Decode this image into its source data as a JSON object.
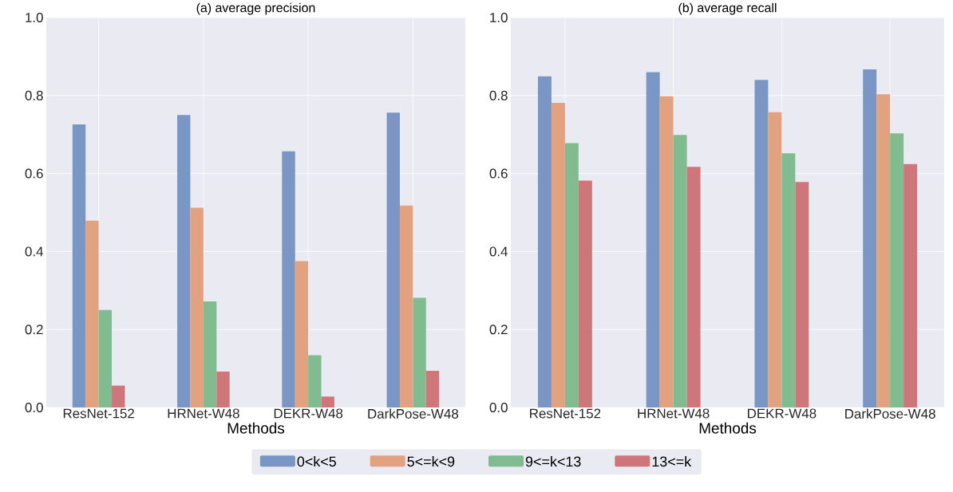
{
  "chart_data": [
    {
      "type": "bar",
      "title": "(a) average precision",
      "xlabel": "Methods",
      "categories": [
        "ResNet-152",
        "HRNet-W48",
        "DEKR-W48",
        "DarkPose-W48"
      ],
      "series": [
        {
          "name": "0<k<5",
          "color": "#7a96c4",
          "values": [
            0.726,
            0.75,
            0.657,
            0.756
          ]
        },
        {
          "name": "5<=k<9",
          "color": "#e2a27f",
          "values": [
            0.479,
            0.512,
            0.375,
            0.518
          ]
        },
        {
          "name": "9<=k<13",
          "color": "#81bc91",
          "values": [
            0.25,
            0.272,
            0.134,
            0.281
          ]
        },
        {
          "name": "13<=k",
          "color": "#cf767b",
          "values": [
            0.056,
            0.092,
            0.028,
            0.094
          ]
        }
      ],
      "ylim": [
        0,
        1
      ],
      "yticks": [
        {
          "value": 0,
          "label": "0.0"
        },
        {
          "value": 0.2,
          "label": "0.2"
        },
        {
          "value": 0.4,
          "label": "0.4"
        },
        {
          "value": 0.6,
          "label": "0.6"
        },
        {
          "value": 0.8,
          "label": "0.8"
        },
        {
          "value": 1,
          "label": "1.0"
        }
      ],
      "grid": true,
      "legend": "bottom"
    },
    {
      "type": "bar",
      "title": "(b) average recall",
      "xlabel": "Methods",
      "categories": [
        "ResNet-152",
        "HRNet-W48",
        "DEKR-W48",
        "DarkPose-W48"
      ],
      "series": [
        {
          "color": "#7a96c4",
          "values": [
            0.849,
            0.86,
            0.84,
            0.867
          ]
        },
        {
          "color": "#e2a27f",
          "values": [
            0.781,
            0.798,
            0.757,
            0.803
          ]
        },
        {
          "color": "#81bc91",
          "values": [
            0.678,
            0.699,
            0.652,
            0.703
          ]
        },
        {
          "color": "#cf767b",
          "values": [
            0.582,
            0.617,
            0.578,
            0.624
          ]
        }
      ],
      "ylim": [
        0,
        1
      ],
      "yticks": [
        {
          "value": 0,
          "label": "0.0"
        },
        {
          "value": 0.2,
          "label": "0.2"
        },
        {
          "value": 0.4,
          "label": "0.4"
        },
        {
          "value": 0.6,
          "label": "0.6"
        },
        {
          "value": 0.8,
          "label": "0.8"
        },
        {
          "value": 1,
          "label": "1.0"
        }
      ],
      "grid": true
    }
  ]
}
